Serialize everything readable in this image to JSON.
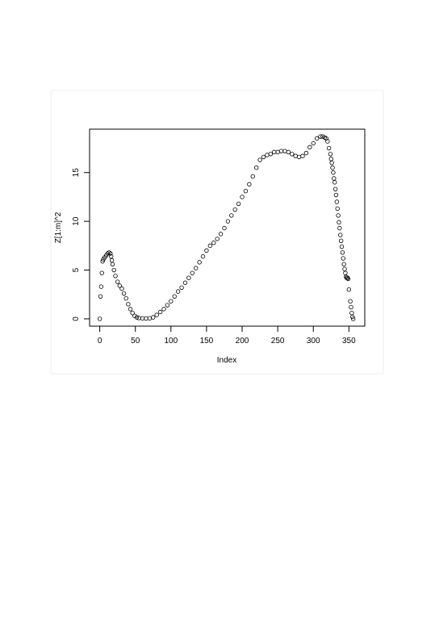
{
  "chart_data": {
    "type": "scatter",
    "xlabel": "Index",
    "ylabel": "Z[1:m]^2",
    "x": [
      0,
      1,
      2,
      3,
      4,
      5,
      7,
      9,
      11,
      13,
      15,
      16,
      17,
      18,
      20,
      22,
      25,
      28,
      31,
      34,
      37,
      40,
      43,
      46,
      49,
      52,
      55,
      60,
      65,
      70,
      75,
      80,
      85,
      90,
      95,
      100,
      105,
      110,
      115,
      120,
      125,
      130,
      135,
      140,
      145,
      150,
      155,
      160,
      165,
      170,
      175,
      180,
      185,
      190,
      195,
      200,
      205,
      210,
      215,
      220,
      225,
      230,
      235,
      240,
      245,
      250,
      255,
      260,
      265,
      270,
      275,
      280,
      285,
      290,
      295,
      300,
      305,
      310,
      313,
      316,
      318,
      320,
      322,
      324,
      325,
      326,
      327,
      328,
      329,
      330,
      331,
      332,
      333,
      334,
      335,
      336,
      337,
      338,
      339,
      340,
      341,
      342,
      343,
      344,
      345,
      346,
      347,
      348,
      349,
      350,
      352,
      353,
      354,
      355,
      356
    ],
    "values": [
      0,
      2.3,
      3.3,
      4.7,
      5.9,
      6.1,
      6.3,
      6.5,
      6.7,
      6.8,
      6.7,
      6.4,
      6.0,
      5.6,
      5.0,
      4.4,
      3.8,
      3.4,
      3.1,
      2.6,
      2.1,
      1.5,
      1.0,
      0.6,
      0.3,
      0.15,
      0.08,
      0.05,
      0.03,
      0.05,
      0.15,
      0.4,
      0.7,
      1.0,
      1.4,
      1.8,
      2.3,
      2.8,
      3.2,
      3.7,
      4.2,
      4.7,
      5.2,
      5.8,
      6.4,
      7.0,
      7.5,
      7.8,
      8.2,
      8.7,
      9.3,
      10.0,
      10.6,
      11.2,
      11.8,
      12.5,
      13.1,
      13.8,
      14.6,
      15.5,
      16.3,
      16.6,
      16.8,
      16.9,
      17.1,
      17.1,
      17.2,
      17.2,
      17.1,
      16.9,
      16.7,
      16.6,
      16.7,
      17.0,
      17.6,
      18.0,
      18.5,
      18.7,
      18.7,
      18.6,
      18.5,
      18.2,
      17.5,
      16.9,
      16.4,
      16.0,
      15.5,
      15.0,
      14.4,
      14.0,
      13.3,
      12.7,
      12.0,
      11.3,
      10.6,
      9.9,
      9.3,
      8.6,
      8.0,
      7.4,
      6.8,
      6.2,
      5.6,
      5.1,
      4.7,
      4.3,
      4.2,
      4.2,
      4.1,
      3.0,
      1.8,
      1.2,
      0.6,
      0.2,
      0
    ],
    "color": "#000000",
    "xlim": [
      -14.3,
      372.3
    ],
    "xticks": [
      0,
      50,
      100,
      150,
      200,
      250,
      300,
      350
    ],
    "ylim": [
      -0.75,
      19.45
    ],
    "yticks": [
      0,
      5,
      10,
      15
    ]
  }
}
